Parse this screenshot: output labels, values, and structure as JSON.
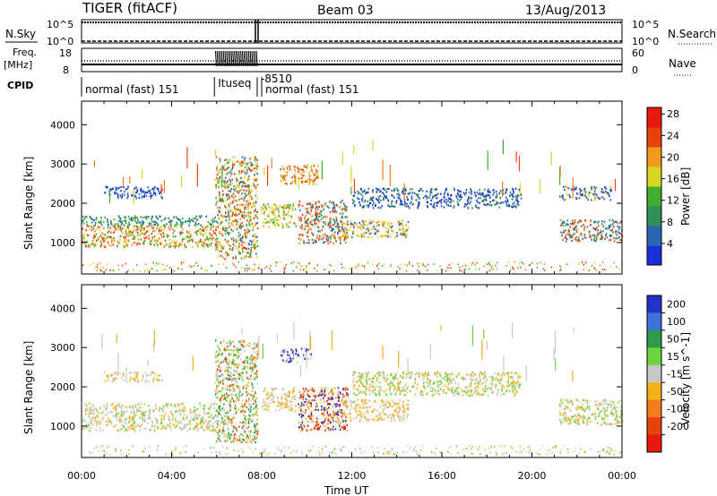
{
  "header": {
    "radar": "TIGER (fitACF)",
    "beam": "Beam 03",
    "date": "13/Aug/2013"
  },
  "top_panels": {
    "nsky": {
      "label": "N.Sky",
      "left_ticks": [
        "10^5",
        "10^0"
      ],
      "right_ticks": [
        "10^5",
        "10^0"
      ],
      "right_label": "N.Search"
    },
    "freq": {
      "label_line1": "Freq.",
      "label_line2": "[MHz]",
      "left_ticks": [
        "18",
        "8"
      ],
      "right_ticks": [
        "60",
        "0"
      ],
      "right_label": "Nave"
    },
    "cpid": {
      "label": "CPID",
      "segments": [
        {
          "text": "normal (fast) 151",
          "start_hour": 0,
          "end_hour": 5.9
        },
        {
          "text": "Ituseq",
          "start_hour": 5.9,
          "end_hour": 7.8
        },
        {
          "text": "-8510",
          "start_hour": 7.8,
          "end_hour": 8.0
        },
        {
          "text": "normal (fast) 151",
          "start_hour": 8.0,
          "end_hour": 24
        }
      ]
    }
  },
  "chart_data": [
    {
      "type": "heatmap",
      "title": "",
      "xlabel": "",
      "ylabel": "Slant Range [km]",
      "xlim_hours": [
        0,
        24
      ],
      "ylim": [
        200,
        4600
      ],
      "ytick_values": [
        1000,
        2000,
        3000,
        4000
      ],
      "ytick_labels": [
        "1000",
        "2000",
        "3000",
        "4000"
      ],
      "colorbar": {
        "label": "Power [dB]",
        "tick_labels": [
          "4",
          "8",
          "12",
          "16",
          "20",
          "24",
          "28"
        ],
        "colors": [
          "#1a2fd8",
          "#2a67b3",
          "#2e8f5a",
          "#3fae2e",
          "#d6d623",
          "#f39a1c",
          "#e8420f",
          "#e8190f"
        ]
      }
    },
    {
      "type": "heatmap",
      "title": "",
      "xlabel": "Time UT",
      "ylabel": "Slant Range [km]",
      "xlim_hours": [
        0,
        24
      ],
      "ylim": [
        200,
        4600
      ],
      "ytick_values": [
        1000,
        2000,
        3000,
        4000
      ],
      "ytick_labels": [
        "1000",
        "2000",
        "3000",
        "4000"
      ],
      "xtick_labels": [
        "00:00",
        "04:00",
        "08:00",
        "12:00",
        "16:00",
        "20:00",
        "00:00"
      ],
      "colorbar": {
        "label": "Velocity [m s^-1]",
        "tick_labels": [
          "200",
          "100",
          "50",
          "15",
          "-15",
          "-50",
          "-100",
          "-200"
        ],
        "colors": [
          "#2432c8",
          "#3c6fd8",
          "#2e9a4e",
          "#6bd43e",
          "#c8c8c8",
          "#f3b11c",
          "#f37d1c",
          "#e8420f",
          "#e8190f"
        ]
      }
    }
  ],
  "echo_bands": {
    "power": [
      {
        "t0": 0.0,
        "t1": 6.0,
        "r0": 900,
        "r1": 1450,
        "colors": [
          "#f37d1c",
          "#e8420f",
          "#3fae2e",
          "#d6d623"
        ]
      },
      {
        "t0": 0.0,
        "t1": 6.0,
        "r0": 1450,
        "r1": 1700,
        "colors": [
          "#2e8f5a",
          "#2a67b3",
          "#3fae2e"
        ]
      },
      {
        "t0": 1.0,
        "t1": 3.6,
        "r0": 2150,
        "r1": 2450,
        "colors": [
          "#1a2fd8",
          "#2a67b3"
        ]
      },
      {
        "t0": 5.9,
        "t1": 7.8,
        "r0": 600,
        "r1": 3200,
        "colors": [
          "#f39a1c",
          "#3fae2e",
          "#2a67b3",
          "#d6d623",
          "#e8420f"
        ]
      },
      {
        "t0": 7.9,
        "t1": 9.5,
        "r0": 1400,
        "r1": 2000,
        "colors": [
          "#f39a1c",
          "#d6d623",
          "#3fae2e"
        ]
      },
      {
        "t0": 8.8,
        "t1": 10.5,
        "r0": 2500,
        "r1": 3000,
        "colors": [
          "#e8420f",
          "#f39a1c",
          "#d6d623"
        ]
      },
      {
        "t0": 9.6,
        "t1": 11.8,
        "r0": 1000,
        "r1": 2100,
        "colors": [
          "#e8420f",
          "#f37d1c",
          "#2e8f5a",
          "#2a67b3"
        ]
      },
      {
        "t0": 11.5,
        "t1": 14.5,
        "r0": 1150,
        "r1": 1600,
        "colors": [
          "#f39a1c",
          "#d6d623",
          "#2a67b3"
        ]
      },
      {
        "t0": 12.0,
        "t1": 19.5,
        "r0": 1900,
        "r1": 2400,
        "colors": [
          "#1a2fd8",
          "#2a67b3",
          "#2e8f5a"
        ]
      },
      {
        "t0": 21.2,
        "t1": 24.0,
        "r0": 1050,
        "r1": 1600,
        "colors": [
          "#e8420f",
          "#f37d1c",
          "#2e8f5a",
          "#2a67b3"
        ]
      },
      {
        "t0": 21.2,
        "t1": 23.5,
        "r0": 2100,
        "r1": 2450,
        "colors": [
          "#1a2fd8",
          "#d6d623",
          "#2a67b3"
        ]
      }
    ],
    "velocity": [
      {
        "t0": 0.0,
        "t1": 6.0,
        "r0": 900,
        "r1": 1600,
        "colors": [
          "#c8c8c8",
          "#c8c8c8",
          "#f3b11c",
          "#6bd43e"
        ]
      },
      {
        "t0": 1.0,
        "t1": 3.6,
        "r0": 2150,
        "r1": 2400,
        "colors": [
          "#c8c8c8",
          "#f3b11c"
        ]
      },
      {
        "t0": 5.9,
        "t1": 7.8,
        "r0": 600,
        "r1": 3200,
        "colors": [
          "#c8c8c8",
          "#f3b11c",
          "#6bd43e",
          "#e8420f",
          "#2e9a4e"
        ]
      },
      {
        "t0": 8.0,
        "t1": 9.5,
        "r0": 1400,
        "r1": 2000,
        "colors": [
          "#f3b11c",
          "#c8c8c8"
        ]
      },
      {
        "t0": 8.8,
        "t1": 10.2,
        "r0": 2650,
        "r1": 3000,
        "colors": [
          "#2432c8",
          "#c8c8c8"
        ]
      },
      {
        "t0": 9.6,
        "t1": 11.8,
        "r0": 900,
        "r1": 2000,
        "colors": [
          "#f37d1c",
          "#e8190f",
          "#2432c8",
          "#f3b11c"
        ]
      },
      {
        "t0": 11.5,
        "t1": 14.5,
        "r0": 1150,
        "r1": 1700,
        "colors": [
          "#f3b11c",
          "#c8c8c8"
        ]
      },
      {
        "t0": 12.0,
        "t1": 19.5,
        "r0": 1800,
        "r1": 2400,
        "colors": [
          "#c8c8c8",
          "#f3b11c",
          "#6bd43e"
        ]
      },
      {
        "t0": 21.2,
        "t1": 24.0,
        "r0": 1050,
        "r1": 1700,
        "colors": [
          "#f3b11c",
          "#c8c8c8",
          "#6bd43e"
        ]
      }
    ]
  }
}
